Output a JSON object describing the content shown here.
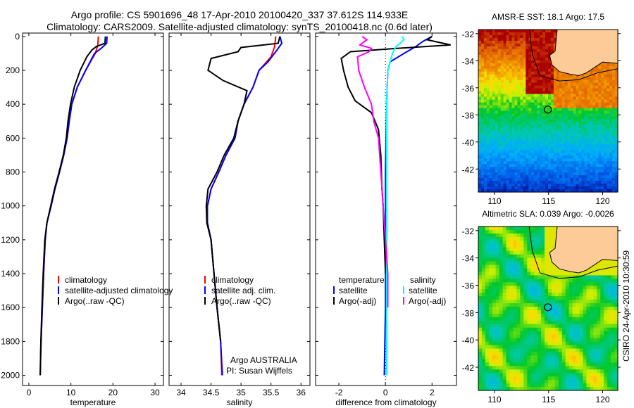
{
  "title_line1": "Argo profile: CS 5901696_48 17-Apr-2010 20100420_337 37.612S 114.933E",
  "title_line2": "Climatology: CARS2009. Satellite-adjusted climatology: synTS_20100418.nc (0.6d later)",
  "side_label": "CSIRO 24-Apr-2010 10:30:59",
  "colors": {
    "climatology": "#ff0000",
    "satellite": "#0000ff",
    "argo": "#000000",
    "sal_satellite": "#00ffff",
    "sal_argo": "#ff00ff",
    "land": "#fccb98"
  },
  "chart_data": [
    {
      "type": "line",
      "id": "temp",
      "xlabel": "temperature",
      "ylabel": "",
      "xlim": [
        -1.5,
        32
      ],
      "ylim": [
        2060,
        -20
      ],
      "xticks": [
        0,
        10,
        20,
        30
      ],
      "yticks": [
        0,
        200,
        400,
        600,
        800,
        1000,
        1200,
        1400,
        1600,
        1800,
        2000
      ],
      "legend": [
        "climatology",
        "satellite-adjusted climatology",
        "Argo(..raw -QC)"
      ],
      "series": [
        {
          "name": "climatology",
          "color": "#ff0000",
          "points": [
            [
              16.5,
              0
            ],
            [
              16.4,
              50
            ],
            [
              15.8,
              100
            ],
            [
              13.5,
              200
            ],
            [
              11.5,
              300
            ],
            [
              10.2,
              400
            ],
            [
              9.6,
              500
            ],
            [
              9.1,
              600
            ],
            [
              8.3,
              700
            ],
            [
              7.3,
              800
            ],
            [
              6.2,
              900
            ],
            [
              5.3,
              1000
            ],
            [
              4.3,
              1100
            ],
            [
              3.9,
              1200
            ],
            [
              3.5,
              1400
            ],
            [
              3.2,
              1600
            ],
            [
              2.9,
              1800
            ],
            [
              2.8,
              1870
            ]
          ]
        },
        {
          "name": "satellite",
          "color": "#0000ff",
          "points": [
            [
              18.6,
              0
            ],
            [
              18.5,
              40
            ],
            [
              17.2,
              70
            ],
            [
              15.6,
              100
            ],
            [
              13.5,
              200
            ],
            [
              11.5,
              300
            ],
            [
              10.2,
              400
            ],
            [
              9.6,
              500
            ],
            [
              9.1,
              600
            ],
            [
              8.3,
              700
            ],
            [
              7.3,
              800
            ],
            [
              6.2,
              900
            ],
            [
              5.3,
              1000
            ],
            [
              4.3,
              1100
            ],
            [
              3.9,
              1200
            ],
            [
              3.5,
              1400
            ],
            [
              3.2,
              1600
            ],
            [
              2.9,
              1800
            ],
            [
              2.7,
              2000
            ]
          ]
        },
        {
          "name": "Argo",
          "color": "#000000",
          "points": [
            [
              18.2,
              0
            ],
            [
              18.1,
              40
            ],
            [
              16.0,
              60
            ],
            [
              15.0,
              80
            ],
            [
              13.8,
              120
            ],
            [
              12.2,
              200
            ],
            [
              10.8,
              300
            ],
            [
              9.9,
              400
            ],
            [
              9.3,
              500
            ],
            [
              8.9,
              600
            ],
            [
              8.2,
              700
            ],
            [
              7.2,
              800
            ],
            [
              6.1,
              900
            ],
            [
              5.2,
              1000
            ],
            [
              4.3,
              1100
            ],
            [
              3.8,
              1200
            ],
            [
              3.4,
              1400
            ],
            [
              3.1,
              1600
            ],
            [
              2.85,
              1800
            ],
            [
              2.7,
              2000
            ]
          ]
        }
      ]
    },
    {
      "type": "line",
      "id": "sal",
      "xlabel": "salinity",
      "xlim": [
        33.8,
        36.15
      ],
      "ylim": [
        2060,
        -20
      ],
      "xticks": [
        34,
        34.5,
        35,
        35.5,
        36
      ],
      "legend": [
        "climatology",
        "satellite adj. clim.",
        "Argo(..raw -QC)"
      ],
      "annotations": [
        "Argo AUSTRALIA",
        "PI: Susan Wijffels"
      ],
      "series": [
        {
          "name": "climatology",
          "color": "#ff0000",
          "points": [
            [
              35.58,
              0
            ],
            [
              35.56,
              60
            ],
            [
              35.5,
              120
            ],
            [
              35.3,
              200
            ],
            [
              35.2,
              300
            ],
            [
              35.05,
              400
            ],
            [
              34.95,
              500
            ],
            [
              34.9,
              600
            ],
            [
              34.75,
              700
            ],
            [
              34.63,
              800
            ],
            [
              34.5,
              900
            ],
            [
              34.44,
              1000
            ],
            [
              34.44,
              1100
            ],
            [
              34.5,
              1200
            ],
            [
              34.55,
              1400
            ],
            [
              34.6,
              1600
            ],
            [
              34.66,
              1800
            ],
            [
              34.68,
              2000
            ]
          ]
        },
        {
          "name": "satellite",
          "color": "#0000ff",
          "points": [
            [
              35.65,
              0
            ],
            [
              35.68,
              40
            ],
            [
              35.6,
              80
            ],
            [
              35.45,
              150
            ],
            [
              35.3,
              200
            ],
            [
              35.2,
              300
            ],
            [
              35.05,
              400
            ],
            [
              34.95,
              500
            ],
            [
              34.9,
              600
            ],
            [
              34.75,
              700
            ],
            [
              34.63,
              800
            ],
            [
              34.5,
              900
            ],
            [
              34.44,
              1000
            ],
            [
              34.44,
              1100
            ],
            [
              34.5,
              1200
            ],
            [
              34.55,
              1400
            ],
            [
              34.6,
              1600
            ],
            [
              34.66,
              1800
            ],
            [
              34.69,
              2000
            ]
          ]
        },
        {
          "name": "Argo",
          "color": "#000000",
          "points": [
            [
              35.65,
              0
            ],
            [
              35.62,
              40
            ],
            [
              35.0,
              65
            ],
            [
              34.95,
              90
            ],
            [
              34.5,
              130
            ],
            [
              34.45,
              200
            ],
            [
              34.7,
              260
            ],
            [
              35.1,
              320
            ],
            [
              35.05,
              400
            ],
            [
              34.95,
              500
            ],
            [
              34.88,
              600
            ],
            [
              34.72,
              700
            ],
            [
              34.6,
              800
            ],
            [
              34.45,
              900
            ],
            [
              34.42,
              1000
            ],
            [
              34.43,
              1100
            ],
            [
              34.5,
              1200
            ],
            [
              34.55,
              1400
            ],
            [
              34.6,
              1600
            ],
            [
              34.66,
              1800
            ]
          ]
        }
      ]
    },
    {
      "type": "line",
      "id": "diff",
      "xlabel": "difference from climatology",
      "xlim": [
        -3,
        3.05
      ],
      "ylim": [
        2060,
        -20
      ],
      "xticks": [
        -2,
        0,
        2
      ],
      "legend_headers": [
        "temperature",
        "salinity"
      ],
      "legend": [
        "satellite",
        "Argo(-adj)",
        "satellite",
        "Argo(-adj)"
      ],
      "series": [
        {
          "name": "temperature satellite",
          "color": "#0000ff",
          "points": [
            [
              2.0,
              0
            ],
            [
              1.6,
              30
            ],
            [
              1.3,
              60
            ],
            [
              0.8,
              100
            ],
            [
              0.2,
              150
            ],
            [
              0.1,
              200
            ],
            [
              0.05,
              400
            ],
            [
              0,
              800
            ],
            [
              0,
              1200
            ],
            [
              0,
              1600
            ],
            [
              -0.05,
              2000
            ]
          ]
        },
        {
          "name": "temperature Argo",
          "color": "#000000",
          "points": [
            [
              2.0,
              0
            ],
            [
              1.8,
              20
            ],
            [
              2.8,
              50
            ],
            [
              0.5,
              70
            ],
            [
              -1.5,
              90
            ],
            [
              -1.9,
              130
            ],
            [
              -1.8,
              200
            ],
            [
              -1.6,
              300
            ],
            [
              -1.3,
              380
            ],
            [
              -0.6,
              450
            ],
            [
              -0.3,
              550
            ],
            [
              -0.2,
              700
            ],
            [
              -0.15,
              900
            ],
            [
              -0.1,
              1000
            ],
            [
              -0.05,
              1200
            ],
            [
              0,
              1400
            ]
          ]
        },
        {
          "name": "salinity satellite",
          "color": "#00ffff",
          "points": [
            [
              0.7,
              0
            ],
            [
              0.8,
              20
            ],
            [
              0.45,
              60
            ],
            [
              0.3,
              100
            ],
            [
              0.1,
              200
            ],
            [
              0.05,
              400
            ],
            [
              0.05,
              800
            ],
            [
              0.05,
              1200
            ],
            [
              0.05,
              1600
            ],
            [
              0.05,
              2000
            ]
          ]
        },
        {
          "name": "salinity Argo",
          "color": "#ff00ff",
          "points": [
            [
              -1.0,
              0
            ],
            [
              -0.8,
              20
            ],
            [
              -1.1,
              50
            ],
            [
              -0.6,
              70
            ],
            [
              -0.7,
              90
            ],
            [
              -1.2,
              120
            ],
            [
              -1.15,
              200
            ],
            [
              -0.9,
              300
            ],
            [
              -0.6,
              400
            ],
            [
              -0.5,
              500
            ],
            [
              -0.3,
              600
            ],
            [
              -0.2,
              800
            ],
            [
              -0.1,
              1000
            ],
            [
              0,
              1200
            ],
            [
              0.1,
              1400
            ],
            [
              0.1,
              1600
            ]
          ]
        }
      ]
    },
    {
      "type": "heatmap",
      "id": "sst",
      "title": "AMSR-E SST: 18.1 Argo: 17.5",
      "xlim": [
        108.5,
        121.4
      ],
      "ylim": [
        -43.7,
        -31.7
      ],
      "xticks": [
        110,
        115,
        120
      ],
      "yticks": [
        -32,
        -34,
        -36,
        -38,
        -40,
        -42
      ],
      "marker": [
        114.933,
        -37.612
      ]
    },
    {
      "type": "heatmap",
      "id": "sla",
      "title": "Altimetric SLA: 0.039 Argo: -0.0026",
      "xlim": [
        108.5,
        121.4
      ],
      "ylim": [
        -43.7,
        -31.7
      ],
      "xticks": [
        110,
        115,
        120
      ],
      "yticks": [
        -32,
        -34,
        -36,
        -38,
        -40,
        -42
      ],
      "marker": [
        114.933,
        -37.612
      ]
    }
  ]
}
